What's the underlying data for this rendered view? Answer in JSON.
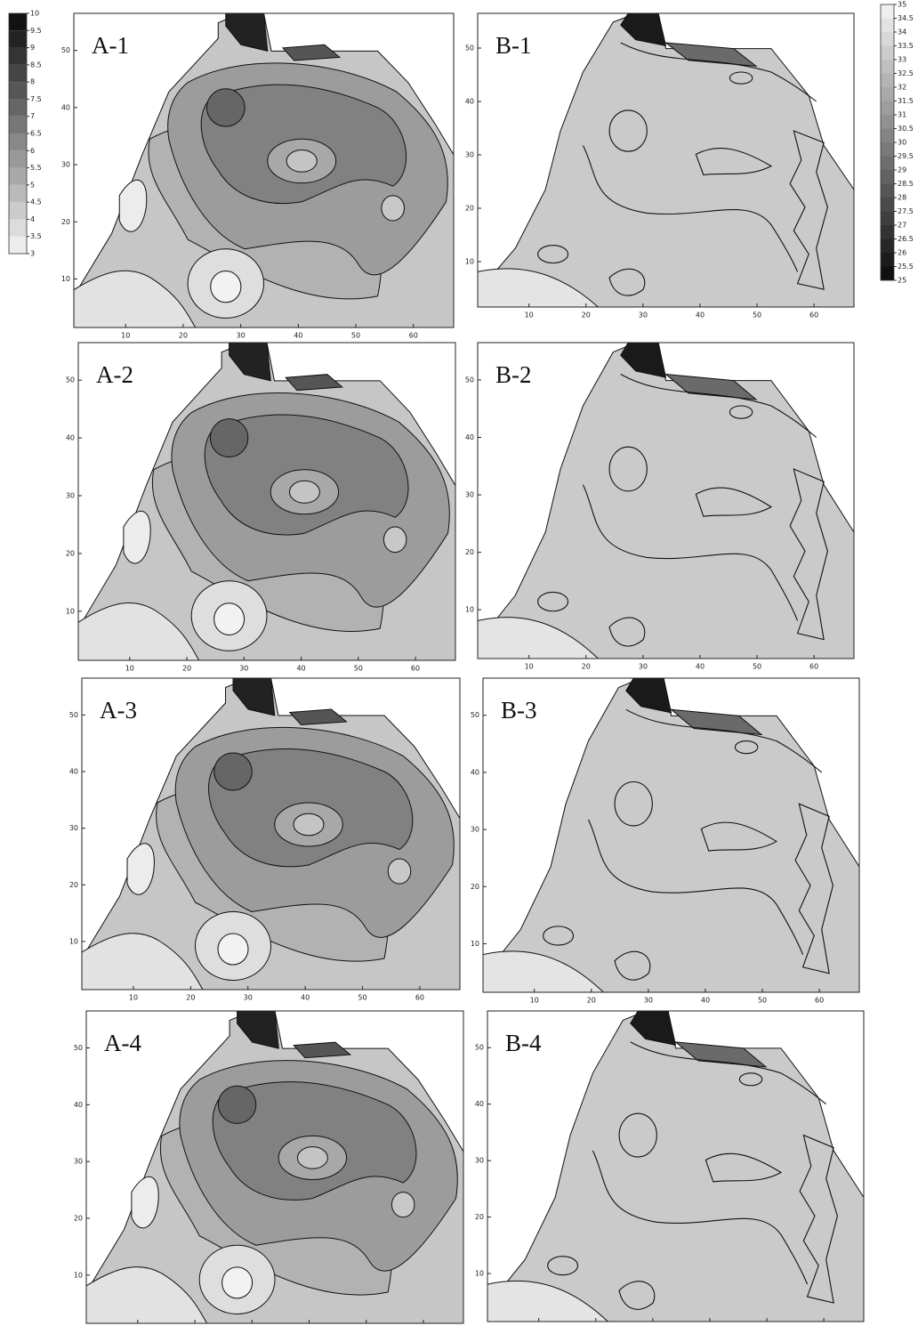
{
  "chart_data": [
    {
      "type": "colorbar",
      "cmap": "gray_r",
      "ylim": [
        3,
        10
      ],
      "yticks": [
        3,
        3.5,
        4,
        4.5,
        5,
        5.5,
        6,
        6.5,
        7,
        7.5,
        8,
        8.5,
        9,
        9.5,
        10
      ]
    },
    {
      "type": "colorbar",
      "cmap": "gray",
      "ylim": [
        25,
        35
      ],
      "yticks": [
        25,
        25.5,
        26,
        26.5,
        27,
        27.5,
        28,
        28.5,
        29,
        29.5,
        30,
        30.5,
        31,
        31.5,
        32,
        32.5,
        33,
        33.5,
        34,
        34.5,
        35
      ]
    },
    {
      "type": "contour",
      "cmap": "gray_r",
      "label": "A-1",
      "xlim": [
        1,
        67
      ],
      "ylim": [
        1.5,
        56.5
      ],
      "xticks": [
        10,
        20,
        30,
        40,
        50,
        60
      ],
      "yticks": [
        10,
        20,
        30,
        40,
        50
      ]
    },
    {
      "type": "contour",
      "cmap": "gray",
      "label": "B-1",
      "xlim": [
        1,
        67
      ],
      "ylim": [
        1.5,
        56.5
      ],
      "xticks": [
        10,
        20,
        30,
        40,
        50,
        60
      ],
      "yticks": [
        10,
        20,
        30,
        40,
        50
      ]
    },
    {
      "type": "contour",
      "cmap": "gray_r",
      "label": "A-2",
      "xlim": [
        1,
        67
      ],
      "ylim": [
        1.5,
        56.5
      ],
      "xticks": [
        10,
        20,
        30,
        40,
        50,
        60
      ],
      "yticks": [
        10,
        20,
        30,
        40,
        50
      ]
    },
    {
      "type": "contour",
      "cmap": "gray",
      "label": "B-2",
      "xlim": [
        1,
        67
      ],
      "ylim": [
        1.5,
        56.5
      ],
      "xticks": [
        10,
        20,
        30,
        40,
        50,
        60
      ],
      "yticks": [
        10,
        20,
        30,
        40,
        50
      ]
    },
    {
      "type": "contour",
      "cmap": "gray_r",
      "label": "A-3",
      "xlim": [
        1,
        67
      ],
      "ylim": [
        1.5,
        56.5
      ],
      "xticks": [
        10,
        20,
        30,
        40,
        50,
        60
      ],
      "yticks": [
        10,
        20,
        30,
        40,
        50
      ]
    },
    {
      "type": "contour",
      "cmap": "gray",
      "label": "B-3",
      "xlim": [
        1,
        67
      ],
      "ylim": [
        1.5,
        56.5
      ],
      "xticks": [
        10,
        20,
        30,
        40,
        50,
        60
      ],
      "yticks": [
        10,
        20,
        30,
        40,
        50
      ]
    },
    {
      "type": "contour",
      "cmap": "gray_r",
      "label": "A-4",
      "xlim": [
        1,
        67
      ],
      "ylim": [
        1.5,
        56.5
      ],
      "xticks": [
        10,
        20,
        30,
        40,
        50,
        60
      ],
      "yticks": [
        10,
        20,
        30,
        40,
        50
      ]
    },
    {
      "type": "contour",
      "cmap": "gray",
      "label": "B-4",
      "xlim": [
        1,
        67
      ],
      "ylim": [
        1.5,
        56.5
      ],
      "xticks": [
        10,
        20,
        30,
        40,
        50,
        60
      ],
      "yticks": [
        10,
        20,
        30,
        40,
        50
      ]
    }
  ]
}
